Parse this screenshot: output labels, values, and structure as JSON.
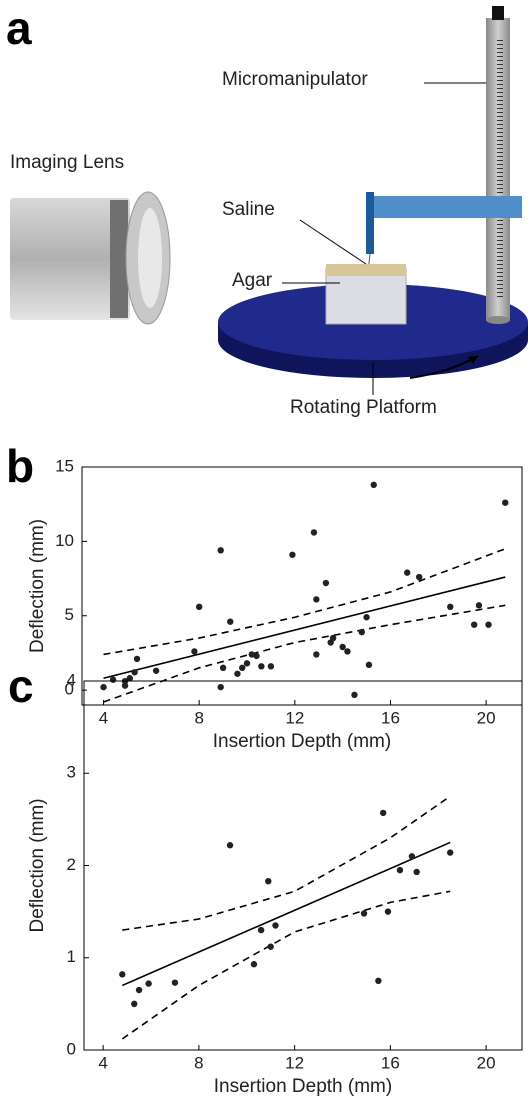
{
  "diagram": {
    "panel_label": "a",
    "micromanipulator": "Micromanipulator",
    "lens": "Imaging Lens",
    "saline": "Saline",
    "agar": "Agar",
    "platform": "Rotating Platform"
  },
  "chart_data": [
    {
      "type": "scatter",
      "panel_label": "b",
      "x_label": "Insertion Depth (mm)",
      "y_label": "Deflection (mm)",
      "color": "#222222",
      "x": [
        4.0,
        4.4,
        4.9,
        4.9,
        5.1,
        5.3,
        5.4,
        6.2,
        7.8,
        8.0,
        8.9,
        8.9,
        9.0,
        9.3,
        9.6,
        9.8,
        10.0,
        10.2,
        10.4,
        10.6,
        11.0,
        11.9,
        12.8,
        12.9,
        12.9,
        13.3,
        13.5,
        13.6,
        14.0,
        14.2,
        14.8,
        15.0,
        15.1,
        15.3,
        16.7,
        17.2,
        18.5,
        19.5,
        19.7,
        20.1,
        20.8
      ],
      "values": [
        0.2,
        0.7,
        0.3,
        0.6,
        0.8,
        1.2,
        2.1,
        1.3,
        2.6,
        5.6,
        9.4,
        0.2,
        1.5,
        4.6,
        1.1,
        1.5,
        1.8,
        2.4,
        2.3,
        1.6,
        1.6,
        9.1,
        10.6,
        6.1,
        2.4,
        7.2,
        3.2,
        3.5,
        2.9,
        2.6,
        3.9,
        4.9,
        1.7,
        13.8,
        7.9,
        7.6,
        5.6,
        4.4,
        5.7,
        4.4,
        12.6
      ],
      "fit_line": {
        "x": [
          4,
          20.8
        ],
        "values": [
          0.8,
          7.6
        ]
      },
      "ci_upper": {
        "x": [
          4,
          8,
          12,
          16,
          20.8
        ],
        "values": [
          2.4,
          3.5,
          4.9,
          6.6,
          9.5
        ]
      },
      "ci_lower": {
        "x": [
          4,
          8,
          12,
          16,
          20.8
        ],
        "values": [
          -0.8,
          1.5,
          3.2,
          4.4,
          5.7
        ]
      },
      "xlim": [
        3.1,
        21.5
      ],
      "ylim": [
        -1,
        15
      ],
      "xticks": [
        4,
        8,
        12,
        16,
        20
      ],
      "yticks": [
        0,
        5,
        10,
        15
      ]
    },
    {
      "type": "scatter",
      "panel_label": "c",
      "x_label": "Insertion Depth (mm)",
      "y_label": "Deflection (mm)",
      "color": "#222222",
      "x": [
        4.8,
        5.3,
        5.5,
        5.9,
        7.0,
        9.3,
        10.3,
        10.6,
        10.9,
        11.0,
        11.2,
        14.5,
        14.9,
        15.5,
        15.7,
        15.9,
        16.4,
        16.9,
        17.1,
        18.5
      ],
      "values": [
        0.82,
        0.5,
        0.65,
        0.72,
        0.73,
        2.22,
        0.93,
        1.3,
        1.83,
        1.12,
        1.35,
        3.85,
        1.48,
        0.75,
        2.57,
        1.5,
        1.95,
        2.1,
        1.93,
        2.14
      ],
      "fit_line": {
        "x": [
          4.8,
          18.5
        ],
        "values": [
          0.7,
          2.25
        ]
      },
      "ci_upper": {
        "x": [
          4.8,
          8,
          12,
          16,
          18.5
        ],
        "values": [
          1.3,
          1.42,
          1.72,
          2.3,
          2.75
        ]
      },
      "ci_lower": {
        "x": [
          4.8,
          8,
          12,
          16,
          18.5
        ],
        "values": [
          0.12,
          0.7,
          1.28,
          1.6,
          1.72
        ]
      },
      "xlim": [
        3.2,
        21.5
      ],
      "ylim": [
        0,
        4
      ],
      "xticks": [
        4,
        8,
        12,
        16,
        20
      ],
      "yticks": [
        0,
        1,
        2,
        3,
        4
      ]
    }
  ]
}
